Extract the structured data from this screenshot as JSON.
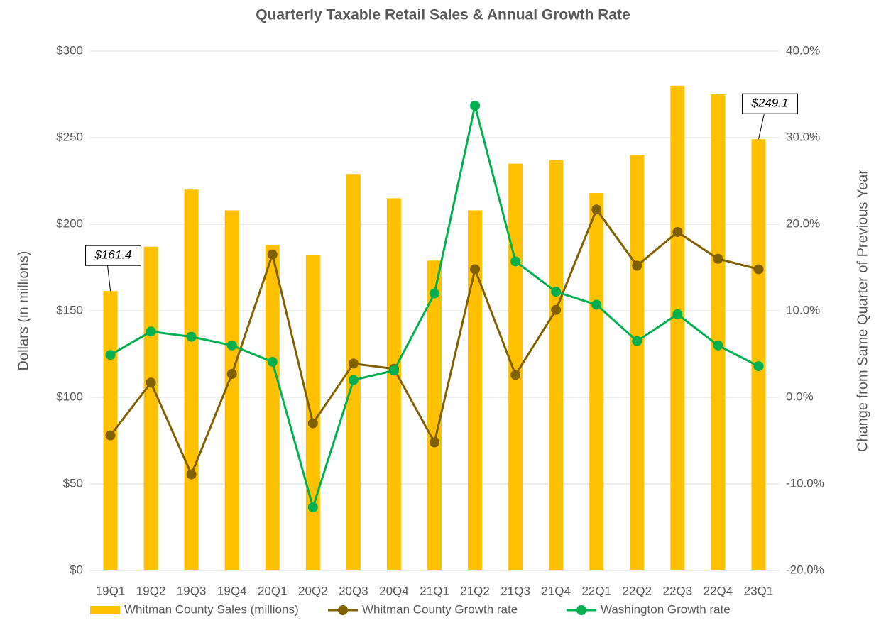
{
  "chart_data": {
    "type": "bar_line",
    "title": "Quarterly Taxable Retail Sales & Annual Growth Rate",
    "y_label": "Dollars (in millions)",
    "y2_label": "Change from Same Quarter of Previous Year",
    "categories": [
      "19Q1",
      "19Q2",
      "19Q3",
      "19Q4",
      "20Q1",
      "20Q2",
      "20Q3",
      "20Q4",
      "21Q1",
      "21Q2",
      "21Q3",
      "21Q4",
      "22Q1",
      "22Q2",
      "22Q3",
      "22Q4",
      "23Q1"
    ],
    "series": [
      {
        "name": "Whitman County Sales (millions)",
        "type": "bar",
        "color": "#ffc000",
        "values": [
          161.4,
          187,
          220,
          208,
          188,
          182,
          229,
          215,
          179,
          208,
          235,
          237,
          218,
          240,
          280,
          275,
          249.1
        ],
        "value_labels": [
          "$161.4",
          null,
          null,
          null,
          null,
          null,
          null,
          null,
          null,
          null,
          null,
          null,
          null,
          null,
          null,
          null,
          "$249.1"
        ]
      },
      {
        "name": "Whitman County Growth rate",
        "type": "line",
        "axis": "y2",
        "color": "#806000",
        "values": [
          -4.4,
          1.7,
          -8.9,
          2.7,
          16.5,
          -3.0,
          3.9,
          3.3,
          -5.2,
          14.8,
          2.6,
          10.1,
          21.7,
          15.2,
          19.1,
          16.0,
          14.8
        ]
      },
      {
        "name": "Washington Growth rate",
        "type": "line",
        "axis": "y2",
        "color": "#00b050",
        "values": [
          4.9,
          7.6,
          7.0,
          6.0,
          4.1,
          -12.7,
          2.0,
          3.1,
          12.0,
          33.7,
          15.7,
          12.2,
          10.7,
          6.5,
          9.6,
          6.0,
          3.6
        ]
      }
    ],
    "ylim": [
      0,
      300
    ],
    "yticks": [
      {
        "value": 0,
        "label": "$0"
      },
      {
        "value": 50,
        "label": "$50"
      },
      {
        "value": 100,
        "label": "$100"
      },
      {
        "value": 150,
        "label": "$150"
      },
      {
        "value": 200,
        "label": "$200"
      },
      {
        "value": 250,
        "label": "$250"
      },
      {
        "value": 300,
        "label": "$300"
      }
    ],
    "y2lim": [
      -20,
      40
    ],
    "y2ticks": [
      {
        "value": -20,
        "label": "-20.0%"
      },
      {
        "value": -10,
        "label": "-10.0%"
      },
      {
        "value": 0,
        "label": "0.0%"
      },
      {
        "value": 10,
        "label": "10.0%"
      },
      {
        "value": 20,
        "label": "20.0%"
      },
      {
        "value": 30,
        "label": "30.0%"
      },
      {
        "value": 40,
        "label": "40.0%"
      }
    ],
    "grid": true,
    "legend": "bottom"
  }
}
